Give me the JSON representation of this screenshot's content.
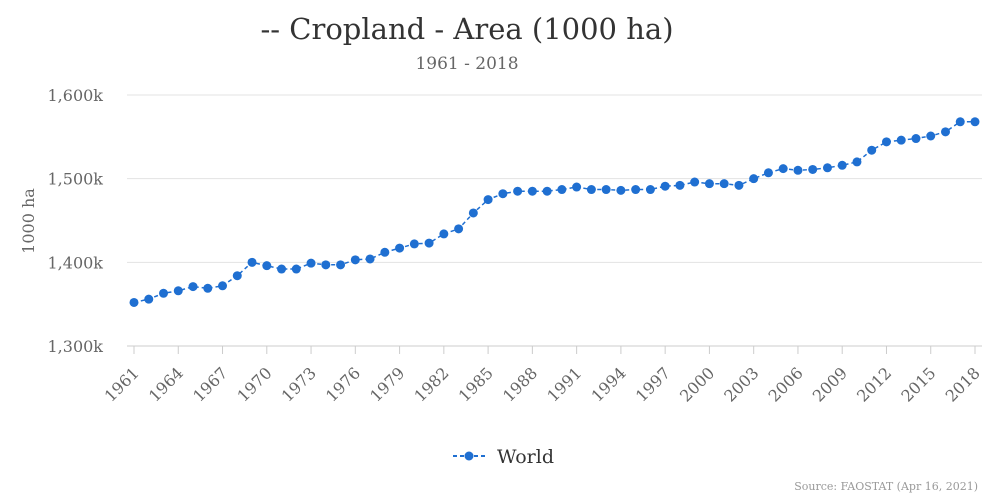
{
  "chart_data": {
    "type": "line",
    "title": "-- Cropland - Area (1000 ha)",
    "subtitle": "1961 - 2018",
    "ylabel": "1000 ha",
    "xlabel": "",
    "ylim": [
      1300,
      1600
    ],
    "y_ticks": [
      1300,
      1400,
      1500,
      1600
    ],
    "y_tick_labels": [
      "1,300k",
      "1,400k",
      "1,500k",
      "1,600k"
    ],
    "x_tick_labels": [
      "1961",
      "1964",
      "1967",
      "1970",
      "1973",
      "1976",
      "1979",
      "1982",
      "1985",
      "1988",
      "1991",
      "1994",
      "1997",
      "2000",
      "2003",
      "2006",
      "2009",
      "2012",
      "2015",
      "2018"
    ],
    "grid": true,
    "legend_position": "bottom-center",
    "color": "#1f6fd1",
    "x": [
      1961,
      1962,
      1963,
      1964,
      1965,
      1966,
      1967,
      1968,
      1969,
      1970,
      1971,
      1972,
      1973,
      1974,
      1975,
      1976,
      1977,
      1978,
      1979,
      1980,
      1981,
      1982,
      1983,
      1984,
      1985,
      1986,
      1987,
      1988,
      1989,
      1990,
      1991,
      1992,
      1993,
      1994,
      1995,
      1996,
      1997,
      1998,
      1999,
      2000,
      2001,
      2002,
      2003,
      2004,
      2005,
      2006,
      2007,
      2008,
      2009,
      2010,
      2011,
      2012,
      2013,
      2014,
      2015,
      2016,
      2017,
      2018
    ],
    "series": [
      {
        "name": "World",
        "values": [
          1352,
          1356,
          1363,
          1366,
          1371,
          1369,
          1372,
          1384,
          1400,
          1396,
          1392,
          1392,
          1399,
          1397,
          1397,
          1403,
          1404,
          1412,
          1417,
          1422,
          1423,
          1434,
          1440,
          1459,
          1475,
          1482,
          1485,
          1485,
          1485,
          1487,
          1490,
          1487,
          1487,
          1486,
          1487,
          1487,
          1491,
          1492,
          1496,
          1494,
          1494,
          1492,
          1500,
          1507,
          1512,
          1510,
          1511,
          1513,
          1516,
          1520,
          1534,
          1544,
          1546,
          1548,
          1551,
          1556,
          1568,
          1568
        ]
      }
    ]
  },
  "source": "Source: FAOSTAT (Apr 16, 2021)"
}
